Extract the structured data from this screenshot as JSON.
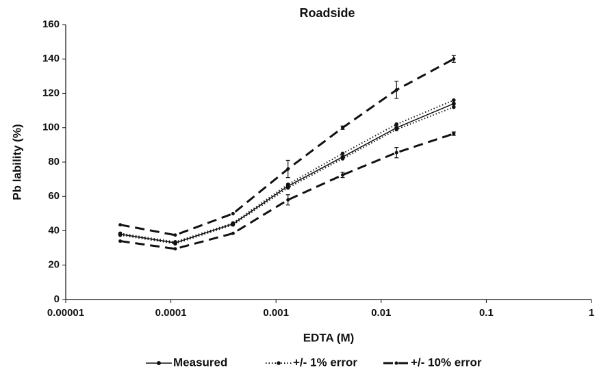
{
  "chart_data": {
    "type": "line",
    "title": "Roadside",
    "x_label": "EDTA (M)",
    "y_label": "Pb lability (%)",
    "log_x": true,
    "grid": false,
    "legend": "bottom",
    "x": [
      3.3e-05,
      0.00011,
      0.00039,
      0.0013,
      0.0043,
      0.014,
      0.049
    ],
    "series": [
      {
        "name": "Measured",
        "color": "#111111",
        "style": "solid",
        "values": [
          38,
          33,
          44,
          66,
          83,
          100,
          114
        ]
      },
      {
        "name": "+/- 1% error",
        "color": "#111111",
        "style": "dotted",
        "upper": [
          38.5,
          33.5,
          44.5,
          67,
          85,
          102,
          116
        ],
        "lower": [
          37.5,
          32.5,
          43.5,
          65,
          82,
          99,
          112
        ]
      },
      {
        "name": "+/- 10% error",
        "color": "#111111",
        "style": "dashed",
        "upper": [
          43.5,
          37.5,
          50,
          76,
          100,
          122,
          140
        ],
        "upper_errors": [
          null,
          null,
          null,
          5,
          1,
          5,
          2
        ],
        "lower": [
          34,
          29.5,
          38.5,
          58,
          72.5,
          85.5,
          96.5
        ],
        "lower_errors": [
          null,
          null,
          null,
          3,
          1.5,
          3,
          1
        ]
      }
    ],
    "xlim": [
      1e-05,
      1
    ],
    "xticks": [
      1e-05,
      0.0001,
      0.001,
      0.01,
      0.1,
      1
    ],
    "ylim": [
      0,
      160
    ],
    "yticks": [
      0,
      20,
      40,
      60,
      80,
      100,
      120,
      140,
      160
    ]
  }
}
